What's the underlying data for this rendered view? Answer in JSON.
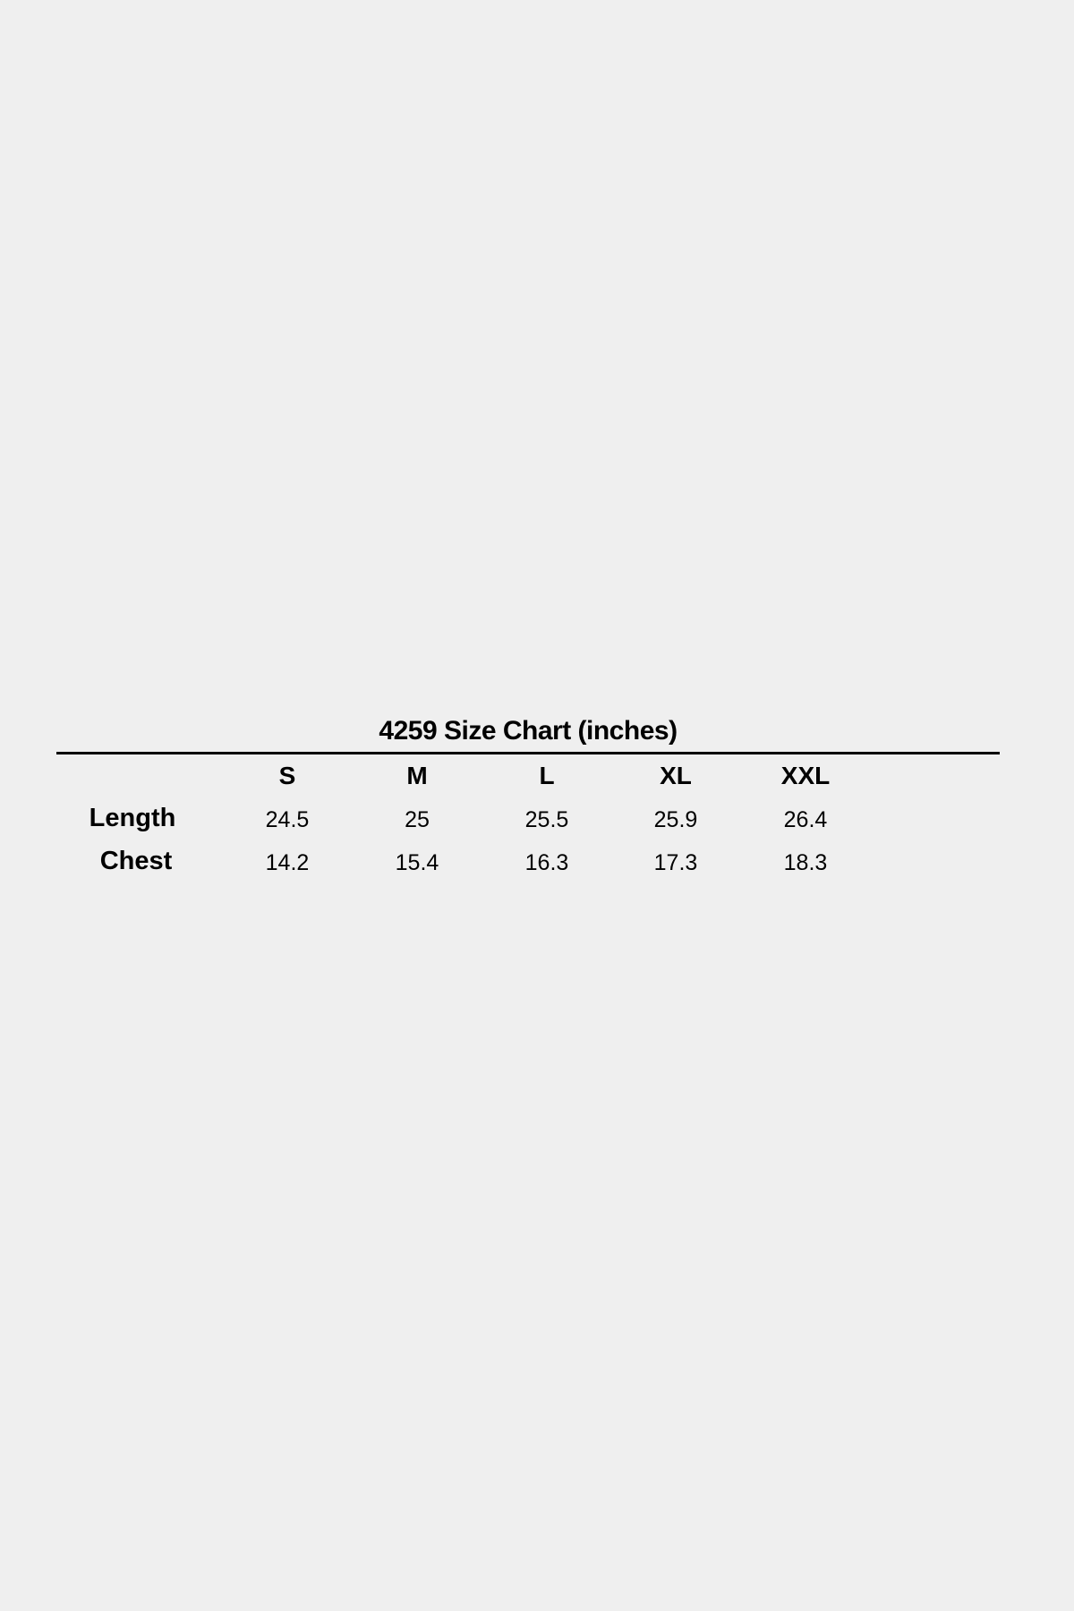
{
  "title": "4259 Size Chart (inches)",
  "table": {
    "columns": [
      "S",
      "M",
      "L",
      "XL",
      "XXL"
    ],
    "rows": [
      {
        "label": "Length",
        "values": [
          "24.5",
          "25",
          "25.5",
          "25.9",
          "26.4"
        ]
      },
      {
        "label": "Chest",
        "values": [
          "14.2",
          "15.4",
          "16.3",
          "17.3",
          "18.3"
        ]
      }
    ]
  }
}
